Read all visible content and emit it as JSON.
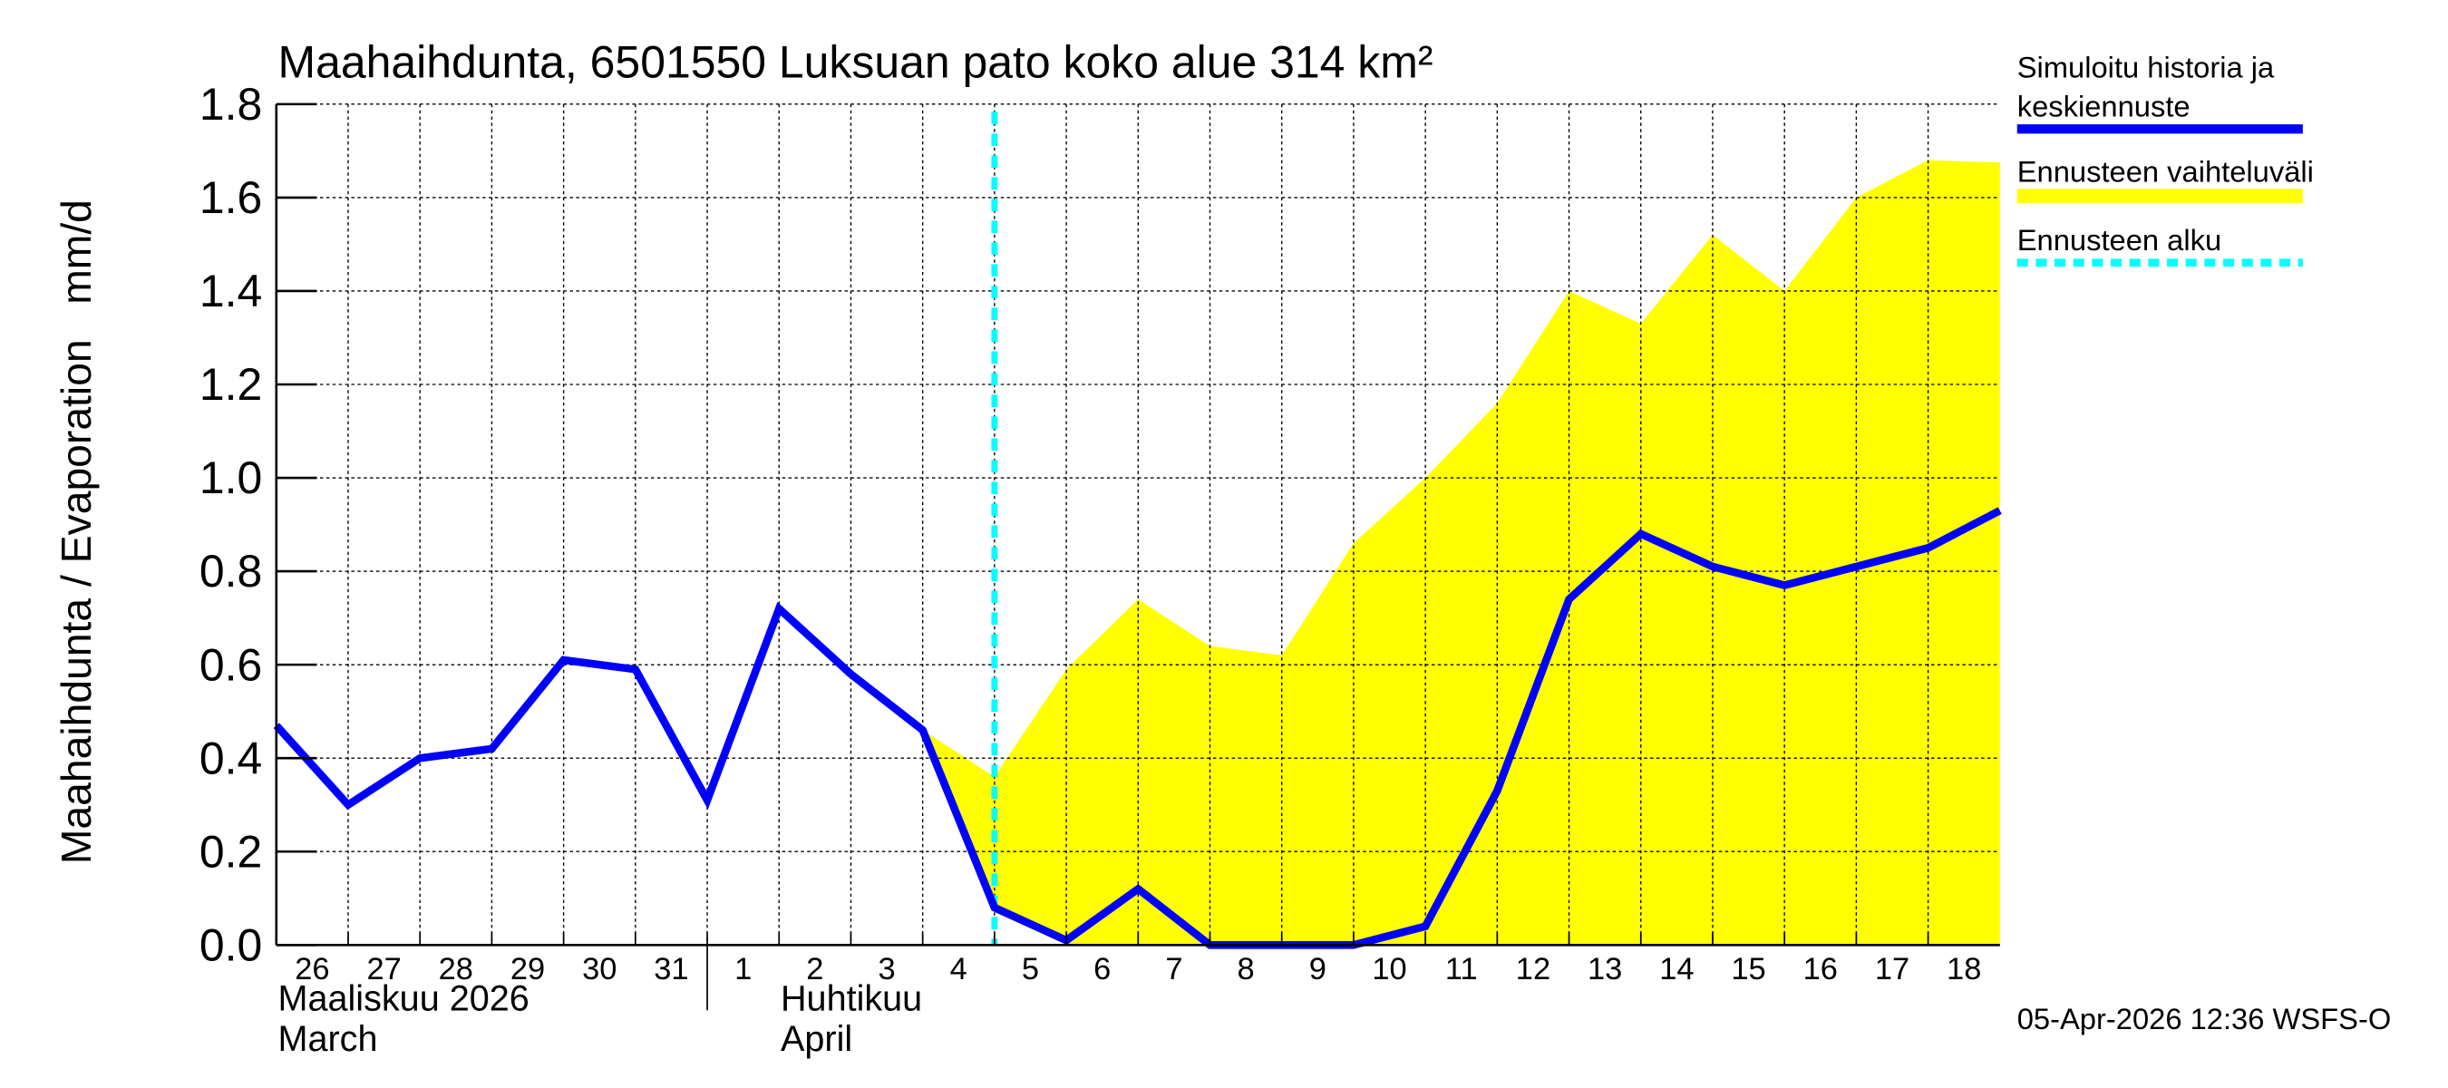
{
  "chart_data": {
    "type": "area",
    "title": "Maahaihdunta, 6501550 Luksuan pato koko alue 314 km²",
    "ylabel": "Maahaihdunta / Evaporation   mm/d",
    "ylim": [
      0,
      1.8
    ],
    "yticks": [
      "0.0",
      "0.2",
      "0.4",
      "0.6",
      "0.8",
      "1.0",
      "1.2",
      "1.4",
      "1.6",
      "1.8"
    ],
    "grid": true,
    "legend_position": "right",
    "x": [
      "2026-03-26",
      "2026-03-27",
      "2026-03-28",
      "2026-03-29",
      "2026-03-30",
      "2026-03-31",
      "2026-04-01",
      "2026-04-02",
      "2026-04-03",
      "2026-04-04",
      "2026-04-05",
      "2026-04-06",
      "2026-04-07",
      "2026-04-08",
      "2026-04-09",
      "2026-04-10",
      "2026-04-11",
      "2026-04-12",
      "2026-04-13",
      "2026-04-14",
      "2026-04-15",
      "2026-04-16",
      "2026-04-17",
      "2026-04-18",
      "2026-04-19"
    ],
    "xtick_labels": [
      "26",
      "27",
      "28",
      "29",
      "30",
      "31",
      "1",
      "2",
      "3",
      "4",
      "5",
      "6",
      "7",
      "8",
      "9",
      "10",
      "11",
      "12",
      "13",
      "14",
      "15",
      "16",
      "17",
      "18"
    ],
    "month_labels": [
      {
        "line1": "Maaliskuu 2026",
        "line2": "March"
      },
      {
        "line1": "Huhtikuu",
        "line2": "April"
      }
    ],
    "series": [
      {
        "name": "Simuloitu historia ja keskiennuste",
        "color": "#0000ff",
        "values": [
          0.47,
          0.3,
          0.4,
          0.42,
          0.61,
          0.59,
          0.31,
          0.72,
          0.58,
          0.46,
          0.08,
          0.01,
          0.12,
          0.0,
          0.0,
          0.0,
          0.04,
          0.33,
          0.74,
          0.88,
          0.81,
          0.77,
          0.81,
          0.85,
          0.93
        ]
      },
      {
        "name": "Ennusteen vaihteluväli",
        "color": "#ffff00",
        "start_index": 9,
        "upper": [
          0.46,
          0.36,
          0.59,
          0.74,
          0.64,
          0.62,
          0.86,
          1.0,
          1.16,
          1.4,
          1.33,
          1.52,
          1.4,
          1.6,
          1.68,
          1.675
        ],
        "lower": [
          0.46,
          0.07,
          0.0,
          0.0,
          0.0,
          0.0,
          0.0,
          0.0,
          0.0,
          0.0,
          0.0,
          0.0,
          0.0,
          0.0,
          0.0,
          0.0
        ]
      }
    ],
    "forecast_start": {
      "name": "Ennusteen alku",
      "x": "2026-04-05",
      "color": "#00ffff"
    },
    "legend": [
      "Simuloitu historia ja",
      "keskiennuste",
      "Ennusteen vaihteluväli",
      "Ennusteen alku"
    ],
    "footer": "05-Apr-2026 12:36 WSFS-O"
  }
}
